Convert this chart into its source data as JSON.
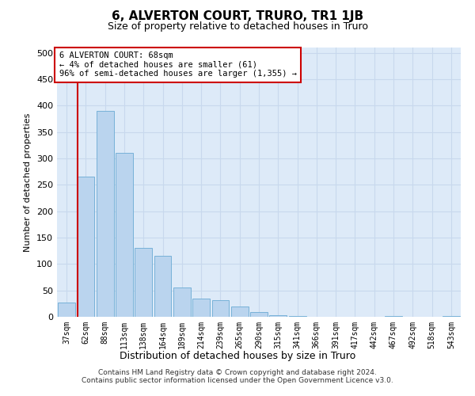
{
  "title": "6, ALVERTON COURT, TRURO, TR1 1JB",
  "subtitle": "Size of property relative to detached houses in Truro",
  "xlabel": "Distribution of detached houses by size in Truro",
  "ylabel": "Number of detached properties",
  "categories": [
    "37sqm",
    "62sqm",
    "88sqm",
    "113sqm",
    "138sqm",
    "164sqm",
    "189sqm",
    "214sqm",
    "239sqm",
    "265sqm",
    "290sqm",
    "315sqm",
    "341sqm",
    "366sqm",
    "391sqm",
    "417sqm",
    "442sqm",
    "467sqm",
    "492sqm",
    "518sqm",
    "543sqm"
  ],
  "values": [
    27,
    265,
    390,
    310,
    130,
    115,
    55,
    35,
    32,
    20,
    9,
    3,
    1,
    0,
    0,
    0,
    0,
    1,
    0,
    0,
    1
  ],
  "bar_color": "#bad4ee",
  "bar_edgecolor": "#6aaad4",
  "vline_color": "#cc0000",
  "annotation_text": "6 ALVERTON COURT: 68sqm\n← 4% of detached houses are smaller (61)\n96% of semi-detached houses are larger (1,355) →",
  "annotation_box_facecolor": "#ffffff",
  "annotation_box_edgecolor": "#cc0000",
  "bg_color": "#ddeaf8",
  "grid_color": "#c8d8ed",
  "footer": "Contains HM Land Registry data © Crown copyright and database right 2024.\nContains public sector information licensed under the Open Government Licence v3.0.",
  "ylim": [
    0,
    510
  ],
  "yticks": [
    0,
    50,
    100,
    150,
    200,
    250,
    300,
    350,
    400,
    450,
    500
  ]
}
